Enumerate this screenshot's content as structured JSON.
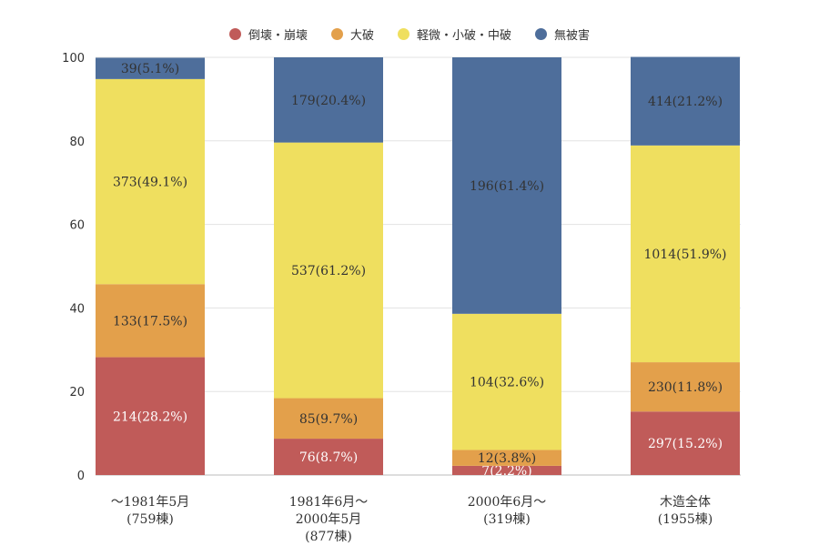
{
  "chart_data": {
    "type": "bar",
    "stacked": true,
    "categories": [
      [
        "～1981年5月",
        "(759棟)"
      ],
      [
        "1981年6月～",
        "2000年5月",
        "(877棟)"
      ],
      [
        "2000年6月～",
        "(319棟)"
      ],
      [
        "木造全体",
        "(1955棟)"
      ]
    ],
    "series": [
      {
        "name": "倒壊・崩壊",
        "color": "#c05b59",
        "values": [
          28.2,
          8.7,
          2.2,
          15.2
        ],
        "labels": [
          "214(28.2%)",
          "76(8.7%)",
          "7(2.2%)",
          "297(15.2%)"
        ],
        "label_color": "#ffffff"
      },
      {
        "name": "大破",
        "color": "#e3a04b",
        "values": [
          17.5,
          9.7,
          3.8,
          11.8
        ],
        "labels": [
          "133(17.5%)",
          "85(9.7%)",
          "12(3.8%)",
          "230(11.8%)"
        ],
        "label_color": "#333333"
      },
      {
        "name": "軽微・小破・中破",
        "color": "#efdf5f",
        "values": [
          49.1,
          61.2,
          32.6,
          51.9
        ],
        "labels": [
          "373(49.1%)",
          "537(61.2%)",
          "104(32.6%)",
          "1014(51.9%)"
        ],
        "label_color": "#333333"
      },
      {
        "name": "無被害",
        "color": "#4e6e9b",
        "values": [
          5.1,
          20.4,
          61.4,
          21.2
        ],
        "labels": [
          "39(5.1%)",
          "179(20.4%)",
          "196(61.4%)",
          "414(21.2%)"
        ],
        "label_color": "#333333"
      }
    ],
    "ylim": [
      0,
      100
    ],
    "yticks": [
      "0",
      "20",
      "40",
      "60",
      "80",
      "100"
    ],
    "grid": true,
    "legend": "top"
  }
}
